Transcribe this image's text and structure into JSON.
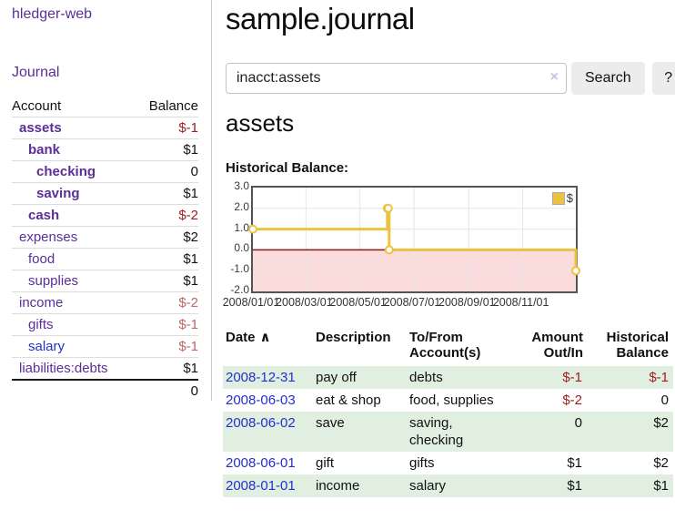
{
  "app": {
    "brand": "hledger-web",
    "nav_journal": "Journal"
  },
  "sidebar": {
    "header": {
      "account": "Account",
      "balance": "Balance"
    },
    "accounts": [
      {
        "name": "assets",
        "depth": 1,
        "balance": "$-1",
        "in_current_query": true
      },
      {
        "name": "bank",
        "depth": 2,
        "balance": "$1",
        "in_current_query": true
      },
      {
        "name": "checking",
        "depth": 3,
        "balance": "0",
        "in_current_query": true
      },
      {
        "name": "saving",
        "depth": 3,
        "balance": "$1",
        "in_current_query": true
      },
      {
        "name": "cash",
        "depth": 2,
        "balance": "$-2",
        "in_current_query": true
      },
      {
        "name": "expenses",
        "depth": 1,
        "balance": "$2",
        "in_current_query": false
      },
      {
        "name": "food",
        "depth": 2,
        "balance": "$1",
        "in_current_query": false
      },
      {
        "name": "supplies",
        "depth": 2,
        "balance": "$1",
        "in_current_query": false
      },
      {
        "name": "income",
        "depth": 1,
        "balance": "$-2",
        "in_current_query": false
      },
      {
        "name": "gifts",
        "depth": 2,
        "balance": "$-1",
        "in_current_query": false
      },
      {
        "name": "salary",
        "depth": 2,
        "balance": "$-1",
        "in_current_query": false
      },
      {
        "name": "liabilities:debts",
        "depth": 1,
        "balance": "$1",
        "in_current_query": false
      }
    ],
    "total": "0"
  },
  "header": {
    "title": "sample.journal"
  },
  "search": {
    "value": "inacct:assets",
    "clear_icon": "×",
    "button": "Search",
    "help_button": "?"
  },
  "account_page": {
    "heading": "assets",
    "chart_label": "Historical Balance:"
  },
  "chart_data": {
    "type": "line",
    "style": "steps",
    "title": "Historical Balance",
    "series": [
      {
        "name": "$",
        "color": "#edc240",
        "points": [
          [
            "2008-01-01",
            1
          ],
          [
            "2008-06-01",
            2
          ],
          [
            "2008-06-02",
            2
          ],
          [
            "2008-06-03",
            0
          ],
          [
            "2008-12-31",
            -1
          ]
        ]
      }
    ],
    "x_range": [
      "2008-01-01",
      "2008-12-31"
    ],
    "ylim": [
      -2,
      3
    ],
    "y_ticks": [
      "3.0",
      "2.0",
      "1.0",
      "0.0",
      "-1.0",
      "-2.0"
    ],
    "x_ticks": [
      "2008/01/01",
      "2008/03/01",
      "2008/05/01",
      "2008/07/01",
      "2008/09/01",
      "2008/11/01"
    ],
    "grid": true,
    "legend": {
      "label": "$",
      "swatch_color": "#edc240",
      "position": "top-right"
    },
    "negative_region_color": "#fbdcdc",
    "zero_line_color": "#8b1717"
  },
  "register": {
    "columns": [
      {
        "label": "Date",
        "sort_indicator": "∧"
      },
      {
        "label": "Description"
      },
      {
        "label": "To/From Account(s)"
      },
      {
        "label": "Amount Out/In"
      },
      {
        "label": "Historical Balance"
      }
    ],
    "rows": [
      {
        "date": "2008-12-31",
        "description": "pay off",
        "accounts": "debts",
        "amount": "$-1",
        "balance": "$-1"
      },
      {
        "date": "2008-06-03",
        "description": "eat & shop",
        "accounts": "food, supplies",
        "amount": "$-2",
        "balance": "0"
      },
      {
        "date": "2008-06-02",
        "description": "save",
        "accounts": "saving, checking",
        "amount": "0",
        "balance": "$2"
      },
      {
        "date": "2008-06-01",
        "description": "gift",
        "accounts": "gifts",
        "amount": "$1",
        "balance": "$2"
      },
      {
        "date": "2008-01-01",
        "description": "income",
        "accounts": "salary",
        "amount": "$1",
        "balance": "$1"
      }
    ]
  }
}
